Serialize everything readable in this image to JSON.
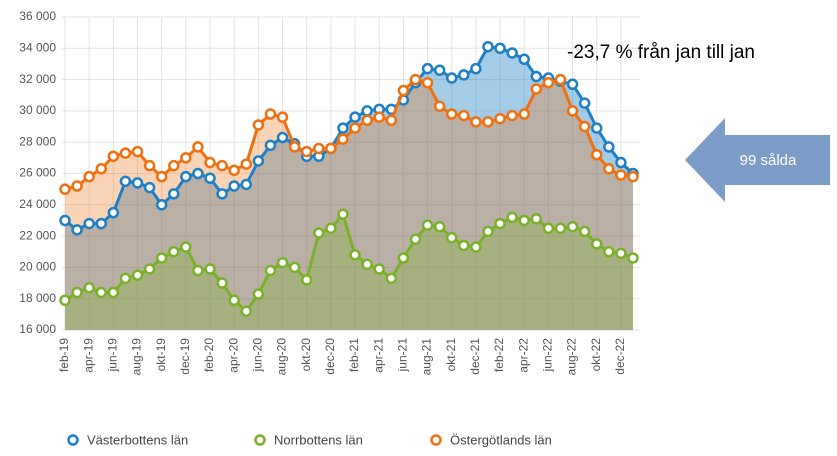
{
  "chart_data": {
    "type": "line",
    "categories": [
      "feb-19",
      null,
      "apr-19",
      null,
      "jun-19",
      null,
      "aug-19",
      null,
      "okt-19",
      null,
      "dec-19",
      null,
      "feb-20",
      null,
      "apr-20",
      null,
      "jun-20",
      null,
      "aug-20",
      null,
      "okt-20",
      null,
      "dec-20",
      null,
      "feb-21",
      null,
      "apr-21",
      null,
      "jun-21",
      null,
      "aug-21",
      null,
      "okt-21",
      null,
      "dec-21",
      null,
      "feb-22",
      null,
      "apr-22",
      null,
      "jun-22",
      null,
      "aug-22",
      null,
      "okt-22",
      null,
      "dec-22",
      null
    ],
    "series": [
      {
        "name": "Västerbottens län",
        "color": "#1f7fc4",
        "values": [
          23000,
          22400,
          22800,
          22800,
          23500,
          25500,
          25400,
          25100,
          24000,
          24700,
          25800,
          26000,
          25700,
          24700,
          25200,
          25300,
          26800,
          27800,
          28300,
          27900,
          27100,
          27100,
          27600,
          28900,
          29600,
          30000,
          30100,
          30100,
          30700,
          31800,
          32700,
          32600,
          32100,
          32300,
          32700,
          34100,
          34000,
          33700,
          33300,
          32200,
          32100,
          31900,
          31700,
          30500,
          28900,
          27700,
          26700,
          26000
        ]
      },
      {
        "name": "Norrbottens län",
        "color": "#7ab02a",
        "values": [
          17900,
          18400,
          18700,
          18400,
          18400,
          19300,
          19500,
          19900,
          20600,
          21000,
          21300,
          19800,
          19900,
          19000,
          17900,
          17200,
          18300,
          19800,
          20300,
          20000,
          19200,
          22200,
          22500,
          23400,
          20800,
          20200,
          19900,
          19300,
          20600,
          21800,
          22700,
          22600,
          21900,
          21400,
          21300,
          22300,
          22800,
          23200,
          23000,
          23100,
          22500,
          22500,
          22600,
          22300,
          21500,
          21000,
          20900,
          20600
        ]
      },
      {
        "name": "Östergötlands län",
        "color": "#f07010",
        "values": [
          25000,
          25200,
          25800,
          26300,
          27100,
          27300,
          27400,
          26500,
          25800,
          26500,
          27000,
          27700,
          26700,
          26500,
          26200,
          26600,
          29100,
          29800,
          29600,
          27700,
          27400,
          27600,
          27600,
          28200,
          28900,
          29400,
          29600,
          29400,
          31300,
          32000,
          31800,
          30300,
          29800,
          29700,
          29300,
          29300,
          29500,
          29700,
          29800,
          31400,
          31800,
          32000,
          30000,
          29000,
          27200,
          26300,
          25900,
          25800
        ]
      }
    ],
    "ylim": [
      16000,
      36000
    ],
    "yticks": [
      {
        "value": 16000,
        "label": "16 000"
      },
      {
        "value": 18000,
        "label": "18 000"
      },
      {
        "value": 20000,
        "label": "20 000"
      },
      {
        "value": 22000,
        "label": "22 000"
      },
      {
        "value": 24000,
        "label": "24 000"
      },
      {
        "value": 26000,
        "label": "26 000"
      },
      {
        "value": 28000,
        "label": "28 000"
      },
      {
        "value": 30000,
        "label": "30 000"
      },
      {
        "value": 32000,
        "label": "32 000"
      },
      {
        "value": 34000,
        "label": "34 000"
      },
      {
        "value": 36000,
        "label": "36 000"
      }
    ],
    "grid": true,
    "legend": "bottom",
    "annotations": [
      "-23,7 % från jan till jan",
      "99 sålda"
    ]
  }
}
